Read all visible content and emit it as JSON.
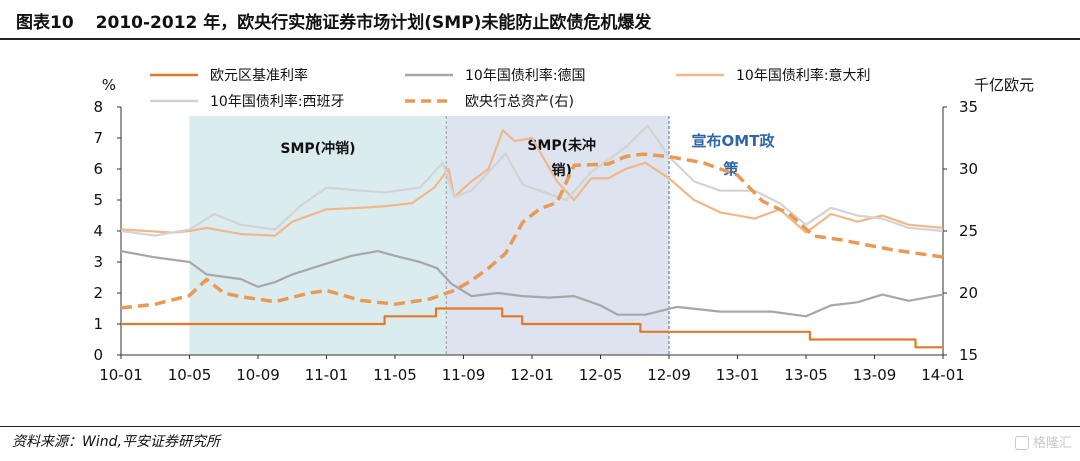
{
  "header": {
    "figure_label": "图表10",
    "title": "2010-2012 年，欧央行实施证券市场计划(SMP)未能防止欧债危机爆发"
  },
  "footer": {
    "source": "资料来源：Wind,平安证券研究所",
    "watermark": "格隆汇"
  },
  "chart_data": {
    "type": "line",
    "left_axis": {
      "unit": "%",
      "range": [
        0,
        8
      ],
      "ticks": [
        "0",
        "1",
        "2",
        "3",
        "4",
        "5",
        "6",
        "7",
        "8"
      ]
    },
    "right_axis": {
      "unit": "千亿欧元",
      "range": [
        15,
        35
      ],
      "ticks": [
        "15",
        "20",
        "25",
        "30",
        "35"
      ]
    },
    "x_axis": {
      "range": [
        "2010-01",
        "2014-01"
      ],
      "tick_labels": [
        "10-01",
        "10-05",
        "10-09",
        "11-01",
        "11-05",
        "11-09",
        "12-01",
        "12-05",
        "12-09",
        "13-01",
        "13-05",
        "13-09",
        "14-01"
      ]
    },
    "regions": [
      {
        "label": "SMP(冲销)",
        "start": "2010-05",
        "end": "2011-08",
        "color": "#dbecef"
      },
      {
        "label": "SMP(未冲销)",
        "start": "2011-08",
        "end": "2012-09",
        "color": "#dde3ef"
      }
    ],
    "annotation": {
      "text": "宣布OMT政策",
      "at": "2012-09"
    },
    "series": [
      {
        "name": "欧元区基准利率",
        "axis": "left",
        "color": "#e07a2a",
        "style": "solid",
        "points": [
          [
            "2010-01-01",
            1.0
          ],
          [
            "2011-04-13",
            1.0
          ],
          [
            "2011-04-13",
            1.25
          ],
          [
            "2011-07-13",
            1.25
          ],
          [
            "2011-07-13",
            1.5
          ],
          [
            "2011-11-09",
            1.5
          ],
          [
            "2011-11-09",
            1.25
          ],
          [
            "2011-12-14",
            1.25
          ],
          [
            "2011-12-14",
            1.0
          ],
          [
            "2012-07-11",
            1.0
          ],
          [
            "2012-07-11",
            0.75
          ],
          [
            "2013-05-08",
            0.75
          ],
          [
            "2013-05-08",
            0.5
          ],
          [
            "2013-11-13",
            0.5
          ],
          [
            "2013-11-13",
            0.25
          ],
          [
            "2014-01-01",
            0.25
          ]
        ]
      },
      {
        "name": "10年国债利率:德国",
        "axis": "left",
        "color": "#a7a7a7",
        "style": "solid",
        "points": [
          [
            "2010-01-01",
            3.35
          ],
          [
            "2010-03-01",
            3.15
          ],
          [
            "2010-05-01",
            3.0
          ],
          [
            "2010-06-01",
            2.6
          ],
          [
            "2010-08-01",
            2.45
          ],
          [
            "2010-09-01",
            2.2
          ],
          [
            "2010-10-01",
            2.35
          ],
          [
            "2010-11-01",
            2.6
          ],
          [
            "2011-01-01",
            2.95
          ],
          [
            "2011-02-15",
            3.2
          ],
          [
            "2011-04-01",
            3.35
          ],
          [
            "2011-05-01",
            3.2
          ],
          [
            "2011-06-15",
            3.0
          ],
          [
            "2011-07-15",
            2.8
          ],
          [
            "2011-08-10",
            2.3
          ],
          [
            "2011-09-15",
            1.9
          ],
          [
            "2011-11-01",
            2.0
          ],
          [
            "2011-12-15",
            1.9
          ],
          [
            "2012-02-01",
            1.85
          ],
          [
            "2012-03-15",
            1.9
          ],
          [
            "2012-05-01",
            1.6
          ],
          [
            "2012-06-01",
            1.3
          ],
          [
            "2012-07-20",
            1.3
          ],
          [
            "2012-09-15",
            1.55
          ],
          [
            "2012-12-01",
            1.4
          ],
          [
            "2013-03-01",
            1.4
          ],
          [
            "2013-05-01",
            1.25
          ],
          [
            "2013-06-15",
            1.6
          ],
          [
            "2013-08-01",
            1.7
          ],
          [
            "2013-09-15",
            1.95
          ],
          [
            "2013-11-01",
            1.75
          ],
          [
            "2014-01-01",
            1.95
          ]
        ]
      },
      {
        "name": "10年国债利率:意大利",
        "axis": "left",
        "color": "#f0b88a",
        "style": "solid",
        "points": [
          [
            "2010-01-01",
            4.05
          ],
          [
            "2010-04-01",
            3.95
          ],
          [
            "2010-05-01",
            4.0
          ],
          [
            "2010-06-01",
            4.1
          ],
          [
            "2010-08-01",
            3.9
          ],
          [
            "2010-10-01",
            3.85
          ],
          [
            "2010-11-01",
            4.3
          ],
          [
            "2011-01-01",
            4.7
          ],
          [
            "2011-03-01",
            4.75
          ],
          [
            "2011-04-15",
            4.8
          ],
          [
            "2011-06-01",
            4.9
          ],
          [
            "2011-07-10",
            5.4
          ],
          [
            "2011-08-05",
            6.0
          ],
          [
            "2011-08-15",
            5.1
          ],
          [
            "2011-09-15",
            5.6
          ],
          [
            "2011-10-15",
            6.0
          ],
          [
            "2011-11-10",
            7.25
          ],
          [
            "2011-12-01",
            6.9
          ],
          [
            "2012-01-01",
            7.0
          ],
          [
            "2012-02-15",
            5.6
          ],
          [
            "2012-03-15",
            5.0
          ],
          [
            "2012-04-15",
            5.7
          ],
          [
            "2012-05-15",
            5.7
          ],
          [
            "2012-06-15",
            6.0
          ],
          [
            "2012-07-20",
            6.2
          ],
          [
            "2012-09-01",
            5.7
          ],
          [
            "2012-10-15",
            5.0
          ],
          [
            "2012-12-01",
            4.6
          ],
          [
            "2013-02-01",
            4.4
          ],
          [
            "2013-03-15",
            4.7
          ],
          [
            "2013-05-01",
            3.95
          ],
          [
            "2013-06-15",
            4.55
          ],
          [
            "2013-08-01",
            4.3
          ],
          [
            "2013-09-15",
            4.5
          ],
          [
            "2013-11-01",
            4.2
          ],
          [
            "2014-01-01",
            4.1
          ]
        ]
      },
      {
        "name": "10年国债利率:西班牙",
        "axis": "left",
        "color": "#d3d3d3",
        "style": "solid",
        "points": [
          [
            "2010-01-01",
            4.0
          ],
          [
            "2010-03-01",
            3.85
          ],
          [
            "2010-05-01",
            4.05
          ],
          [
            "2010-06-15",
            4.55
          ],
          [
            "2010-08-01",
            4.2
          ],
          [
            "2010-10-01",
            4.05
          ],
          [
            "2010-11-15",
            4.8
          ],
          [
            "2011-01-01",
            5.4
          ],
          [
            "2011-03-01",
            5.3
          ],
          [
            "2011-04-15",
            5.25
          ],
          [
            "2011-06-15",
            5.4
          ],
          [
            "2011-07-25",
            6.2
          ],
          [
            "2011-08-15",
            5.1
          ],
          [
            "2011-09-15",
            5.3
          ],
          [
            "2011-11-15",
            6.5
          ],
          [
            "2011-12-15",
            5.5
          ],
          [
            "2012-01-15",
            5.3
          ],
          [
            "2012-03-01",
            5.0
          ],
          [
            "2012-04-15",
            5.9
          ],
          [
            "2012-05-15",
            6.3
          ],
          [
            "2012-06-15",
            6.7
          ],
          [
            "2012-07-24",
            7.4
          ],
          [
            "2012-09-01",
            6.4
          ],
          [
            "2012-10-15",
            5.6
          ],
          [
            "2012-12-01",
            5.3
          ],
          [
            "2013-02-01",
            5.3
          ],
          [
            "2013-03-15",
            4.9
          ],
          [
            "2013-05-01",
            4.2
          ],
          [
            "2013-06-15",
            4.75
          ],
          [
            "2013-08-01",
            4.5
          ],
          [
            "2013-09-15",
            4.4
          ],
          [
            "2013-11-01",
            4.1
          ],
          [
            "2014-01-01",
            4.0
          ]
        ]
      },
      {
        "name": "欧央行总资产(右)",
        "axis": "right",
        "color": "#e89a55",
        "style": "dashed",
        "points": [
          [
            "2010-01-01",
            18.8
          ],
          [
            "2010-03-01",
            19.1
          ],
          [
            "2010-05-01",
            19.8
          ],
          [
            "2010-06-01",
            21.1
          ],
          [
            "2010-07-01",
            20.0
          ],
          [
            "2010-08-01",
            19.7
          ],
          [
            "2010-10-01",
            19.3
          ],
          [
            "2010-12-01",
            20.0
          ],
          [
            "2011-01-01",
            20.2
          ],
          [
            "2011-03-01",
            19.4
          ],
          [
            "2011-05-01",
            19.1
          ],
          [
            "2011-07-01",
            19.5
          ],
          [
            "2011-08-15",
            20.2
          ],
          [
            "2011-09-15",
            21.0
          ],
          [
            "2011-10-15",
            22.0
          ],
          [
            "2011-11-15",
            23.2
          ],
          [
            "2011-12-15",
            25.7
          ],
          [
            "2012-01-15",
            26.8
          ],
          [
            "2012-02-15",
            27.3
          ],
          [
            "2012-03-15",
            30.3
          ],
          [
            "2012-05-15",
            30.4
          ],
          [
            "2012-06-15",
            31.0
          ],
          [
            "2012-07-15",
            31.2
          ],
          [
            "2012-09-01",
            31.0
          ],
          [
            "2012-11-01",
            30.5
          ],
          [
            "2013-01-01",
            29.5
          ],
          [
            "2013-02-15",
            27.4
          ],
          [
            "2013-04-01",
            26.4
          ],
          [
            "2013-05-15",
            24.6
          ],
          [
            "2013-07-01",
            24.3
          ],
          [
            "2013-08-15",
            23.9
          ],
          [
            "2013-10-01",
            23.5
          ],
          [
            "2013-11-15",
            23.2
          ],
          [
            "2014-01-01",
            22.9
          ]
        ]
      }
    ]
  }
}
